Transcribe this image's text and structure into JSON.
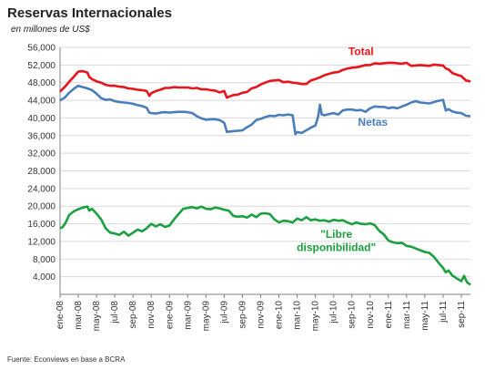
{
  "chart_data": {
    "type": "line",
    "title": "Reservas Internacionales",
    "subtitle": "en millones de US$",
    "source": "Fuente: Econviews en base a BCRA",
    "ylim": [
      0,
      56000
    ],
    "yticks": [
      "4,000",
      "8,000",
      "12,000",
      "16,000",
      "20,000",
      "24,000",
      "28,000",
      "32,000",
      "36,000",
      "40,000",
      "44,000",
      "48,000",
      "52,000",
      "56,000"
    ],
    "ytick_values": [
      4000,
      8000,
      12000,
      16000,
      20000,
      24000,
      28000,
      32000,
      36000,
      40000,
      44000,
      48000,
      52000,
      56000
    ],
    "x_range": [
      0,
      45
    ],
    "xticks": [
      "ene-08",
      "mar-08",
      "may-08",
      "jul-08",
      "sep-08",
      "nov-08",
      "ene-09",
      "mar-09",
      "may-09",
      "jul-09",
      "sep-09",
      "nov-09",
      "ene-10",
      "mar-10",
      "may-10",
      "jul-10",
      "sep-10",
      "nov-10",
      "ene-11",
      "mar-11",
      "may-11",
      "jul-11",
      "sep-11"
    ],
    "xtick_positions": [
      0,
      2,
      4,
      6,
      8,
      10,
      12,
      14,
      16,
      18,
      20,
      22,
      24,
      26,
      28,
      30,
      32,
      34,
      36,
      38,
      40,
      42,
      44
    ],
    "grid": true,
    "series": [
      {
        "name": "Total",
        "color": "#e8141b",
        "points": [
          [
            0,
            46000
          ],
          [
            0.5,
            47000
          ],
          [
            1,
            48200
          ],
          [
            1.5,
            49300
          ],
          [
            2,
            50500
          ],
          [
            2.5,
            50600
          ],
          [
            3,
            50300
          ],
          [
            3.2,
            49300
          ],
          [
            3.5,
            48800
          ],
          [
            4,
            48300
          ],
          [
            4.5,
            48000
          ],
          [
            5,
            47500
          ],
          [
            5.5,
            47300
          ],
          [
            6,
            47300
          ],
          [
            6.5,
            47100
          ],
          [
            7,
            47000
          ],
          [
            7.5,
            46700
          ],
          [
            8,
            46600
          ],
          [
            8.5,
            46400
          ],
          [
            9,
            46300
          ],
          [
            9.5,
            46100
          ],
          [
            9.8,
            45000
          ],
          [
            10,
            45600
          ],
          [
            10.5,
            46100
          ],
          [
            11,
            46400
          ],
          [
            11.5,
            46800
          ],
          [
            12,
            46800
          ],
          [
            12.5,
            47000
          ],
          [
            13,
            46900
          ],
          [
            13.5,
            46900
          ],
          [
            14,
            46900
          ],
          [
            14.5,
            46700
          ],
          [
            15,
            46800
          ],
          [
            15.5,
            46500
          ],
          [
            16,
            46500
          ],
          [
            16.5,
            46300
          ],
          [
            17,
            46200
          ],
          [
            17.5,
            45800
          ],
          [
            18,
            46100
          ],
          [
            18.3,
            44600
          ],
          [
            18.5,
            44800
          ],
          [
            19,
            45200
          ],
          [
            19.5,
            45300
          ],
          [
            20,
            45700
          ],
          [
            20.5,
            45900
          ],
          [
            21,
            46700
          ],
          [
            21.5,
            47000
          ],
          [
            22,
            47600
          ],
          [
            22.5,
            48000
          ],
          [
            23,
            48400
          ],
          [
            23.5,
            48500
          ],
          [
            24,
            48600
          ],
          [
            24.5,
            48100
          ],
          [
            25,
            48200
          ],
          [
            25.5,
            48000
          ],
          [
            26,
            47900
          ],
          [
            26.5,
            47700
          ],
          [
            27,
            47700
          ],
          [
            27.5,
            48500
          ],
          [
            28,
            48800
          ],
          [
            28.5,
            49200
          ],
          [
            29,
            49700
          ],
          [
            29.5,
            50000
          ],
          [
            30,
            50300
          ],
          [
            30.5,
            50400
          ],
          [
            31,
            50900
          ],
          [
            31.5,
            51200
          ],
          [
            32,
            51400
          ],
          [
            32.5,
            51500
          ],
          [
            33,
            51700
          ],
          [
            33.5,
            52000
          ],
          [
            34,
            52000
          ],
          [
            34.5,
            52400
          ],
          [
            35,
            52300
          ],
          [
            35.5,
            52400
          ],
          [
            36,
            52500
          ],
          [
            36.5,
            52500
          ],
          [
            37,
            52400
          ],
          [
            37.5,
            52300
          ],
          [
            38,
            52500
          ],
          [
            38.5,
            51800
          ],
          [
            39,
            51900
          ],
          [
            39.5,
            52000
          ],
          [
            40,
            51900
          ],
          [
            40.5,
            51800
          ],
          [
            41,
            52100
          ],
          [
            41.5,
            52000
          ],
          [
            42,
            51900
          ],
          [
            42.3,
            51200
          ],
          [
            42.6,
            51000
          ],
          [
            43,
            50200
          ],
          [
            43.5,
            49800
          ],
          [
            44,
            49500
          ],
          [
            44.5,
            48500
          ],
          [
            45,
            48300
          ]
        ]
      },
      {
        "name": "Netas",
        "color": "#4a7ebb",
        "points": [
          [
            0,
            44000
          ],
          [
            0.5,
            44600
          ],
          [
            1,
            45700
          ],
          [
            1.5,
            46600
          ],
          [
            2,
            47300
          ],
          [
            2.5,
            47000
          ],
          [
            3,
            46700
          ],
          [
            3.5,
            46300
          ],
          [
            4,
            45500
          ],
          [
            4.5,
            44500
          ],
          [
            5,
            44100
          ],
          [
            5.5,
            44200
          ],
          [
            6,
            43800
          ],
          [
            6.5,
            43600
          ],
          [
            7,
            43500
          ],
          [
            7.5,
            43400
          ],
          [
            8,
            43200
          ],
          [
            8.5,
            42900
          ],
          [
            9,
            42700
          ],
          [
            9.5,
            42300
          ],
          [
            9.8,
            41200
          ],
          [
            10,
            41100
          ],
          [
            10.5,
            41000
          ],
          [
            11,
            41200
          ],
          [
            11.5,
            41300
          ],
          [
            12,
            41200
          ],
          [
            12.5,
            41300
          ],
          [
            13,
            41400
          ],
          [
            13.5,
            41400
          ],
          [
            14,
            41300
          ],
          [
            14.5,
            41100
          ],
          [
            15,
            40400
          ],
          [
            15.5,
            39900
          ],
          [
            16,
            39600
          ],
          [
            16.5,
            39700
          ],
          [
            17,
            39700
          ],
          [
            17.5,
            39500
          ],
          [
            18,
            38900
          ],
          [
            18.3,
            36800
          ],
          [
            18.5,
            36900
          ],
          [
            19,
            37000
          ],
          [
            19.5,
            37100
          ],
          [
            20,
            37200
          ],
          [
            20.5,
            37900
          ],
          [
            21,
            38500
          ],
          [
            21.5,
            39500
          ],
          [
            22,
            39800
          ],
          [
            22.5,
            40200
          ],
          [
            23,
            40500
          ],
          [
            23.5,
            40400
          ],
          [
            24,
            40700
          ],
          [
            24.5,
            40600
          ],
          [
            25,
            40800
          ],
          [
            25.5,
            40600
          ],
          [
            25.8,
            36300
          ],
          [
            26,
            36800
          ],
          [
            26.5,
            36600
          ],
          [
            27,
            37200
          ],
          [
            27.5,
            37800
          ],
          [
            28,
            38300
          ],
          [
            28.3,
            40300
          ],
          [
            28.5,
            43000
          ],
          [
            28.7,
            40800
          ],
          [
            29,
            40600
          ],
          [
            29.5,
            40900
          ],
          [
            30,
            41100
          ],
          [
            30.5,
            40800
          ],
          [
            31,
            41700
          ],
          [
            31.5,
            41900
          ],
          [
            32,
            41900
          ],
          [
            32.5,
            41700
          ],
          [
            33,
            41800
          ],
          [
            33.5,
            41400
          ],
          [
            34,
            42200
          ],
          [
            34.5,
            42600
          ],
          [
            35,
            42500
          ],
          [
            35.5,
            42500
          ],
          [
            36,
            42200
          ],
          [
            36.5,
            42400
          ],
          [
            37,
            42200
          ],
          [
            37.5,
            42600
          ],
          [
            38,
            43000
          ],
          [
            38.5,
            43500
          ],
          [
            39,
            43800
          ],
          [
            39.5,
            43500
          ],
          [
            40,
            43400
          ],
          [
            40.5,
            43300
          ],
          [
            41,
            43600
          ],
          [
            41.5,
            43900
          ],
          [
            42,
            44100
          ],
          [
            42.3,
            41700
          ],
          [
            42.6,
            42000
          ],
          [
            43,
            41500
          ],
          [
            43.5,
            41200
          ],
          [
            44,
            41100
          ],
          [
            44.5,
            40500
          ],
          [
            45,
            40400
          ]
        ]
      },
      {
        "name": "\"Libre disponibilidad\"",
        "color": "#1aa03f",
        "points": [
          [
            0,
            15000
          ],
          [
            0.3,
            15300
          ],
          [
            0.6,
            16200
          ],
          [
            1,
            18000
          ],
          [
            1.5,
            18800
          ],
          [
            2,
            19300
          ],
          [
            2.5,
            19700
          ],
          [
            3,
            19900
          ],
          [
            3.2,
            19000
          ],
          [
            3.5,
            19400
          ],
          [
            4,
            18300
          ],
          [
            4.5,
            17000
          ],
          [
            5,
            15000
          ],
          [
            5.5,
            14000
          ],
          [
            6,
            13800
          ],
          [
            6.5,
            13500
          ],
          [
            7,
            14200
          ],
          [
            7.5,
            13300
          ],
          [
            8,
            14000
          ],
          [
            8.5,
            14700
          ],
          [
            9,
            14300
          ],
          [
            9.5,
            15000
          ],
          [
            10,
            16000
          ],
          [
            10.5,
            15400
          ],
          [
            11,
            15900
          ],
          [
            11.5,
            15300
          ],
          [
            12,
            15600
          ],
          [
            12.5,
            17000
          ],
          [
            13,
            18200
          ],
          [
            13.5,
            19400
          ],
          [
            14,
            19600
          ],
          [
            14.5,
            19800
          ],
          [
            15,
            19500
          ],
          [
            15.5,
            19900
          ],
          [
            16,
            19400
          ],
          [
            16.5,
            19300
          ],
          [
            17,
            19700
          ],
          [
            17.5,
            19500
          ],
          [
            18,
            19200
          ],
          [
            18.5,
            19000
          ],
          [
            19,
            17800
          ],
          [
            19.5,
            17600
          ],
          [
            20,
            17700
          ],
          [
            20.5,
            17400
          ],
          [
            21,
            18100
          ],
          [
            21.5,
            17500
          ],
          [
            22,
            18300
          ],
          [
            22.5,
            18400
          ],
          [
            23,
            18200
          ],
          [
            23.5,
            17000
          ],
          [
            24,
            16300
          ],
          [
            24.5,
            16700
          ],
          [
            25,
            16600
          ],
          [
            25.5,
            16300
          ],
          [
            26,
            17200
          ],
          [
            26.5,
            16800
          ],
          [
            27,
            17500
          ],
          [
            27.5,
            16800
          ],
          [
            28,
            17000
          ],
          [
            28.5,
            16700
          ],
          [
            29,
            16800
          ],
          [
            29.5,
            16500
          ],
          [
            30,
            16900
          ],
          [
            30.5,
            16700
          ],
          [
            31,
            16800
          ],
          [
            31.5,
            16300
          ],
          [
            32,
            15900
          ],
          [
            32.5,
            16300
          ],
          [
            33,
            16000
          ],
          [
            33.5,
            15900
          ],
          [
            34,
            16100
          ],
          [
            34.5,
            15700
          ],
          [
            35,
            14400
          ],
          [
            35.5,
            13600
          ],
          [
            36,
            12200
          ],
          [
            36.5,
            11800
          ],
          [
            37,
            11600
          ],
          [
            37.5,
            11700
          ],
          [
            38,
            11000
          ],
          [
            38.5,
            10800
          ],
          [
            39,
            10400
          ],
          [
            39.5,
            10000
          ],
          [
            40,
            9600
          ],
          [
            40.5,
            9400
          ],
          [
            41,
            8500
          ],
          [
            41.5,
            7200
          ],
          [
            42,
            6000
          ],
          [
            42.3,
            5000
          ],
          [
            42.6,
            5400
          ],
          [
            43,
            4300
          ],
          [
            43.5,
            3600
          ],
          [
            44,
            3000
          ],
          [
            44.3,
            4200
          ],
          [
            44.6,
            2800
          ],
          [
            45,
            2200
          ]
        ]
      }
    ],
    "series_labels": [
      {
        "text": "Total",
        "color": "#e8141b"
      },
      {
        "text": "Netas",
        "color": "#4a7ebb"
      },
      {
        "text": "\"Libre",
        "color": "#1aa03f"
      },
      {
        "text": "disponibilidad\"",
        "color": "#1aa03f"
      }
    ]
  }
}
